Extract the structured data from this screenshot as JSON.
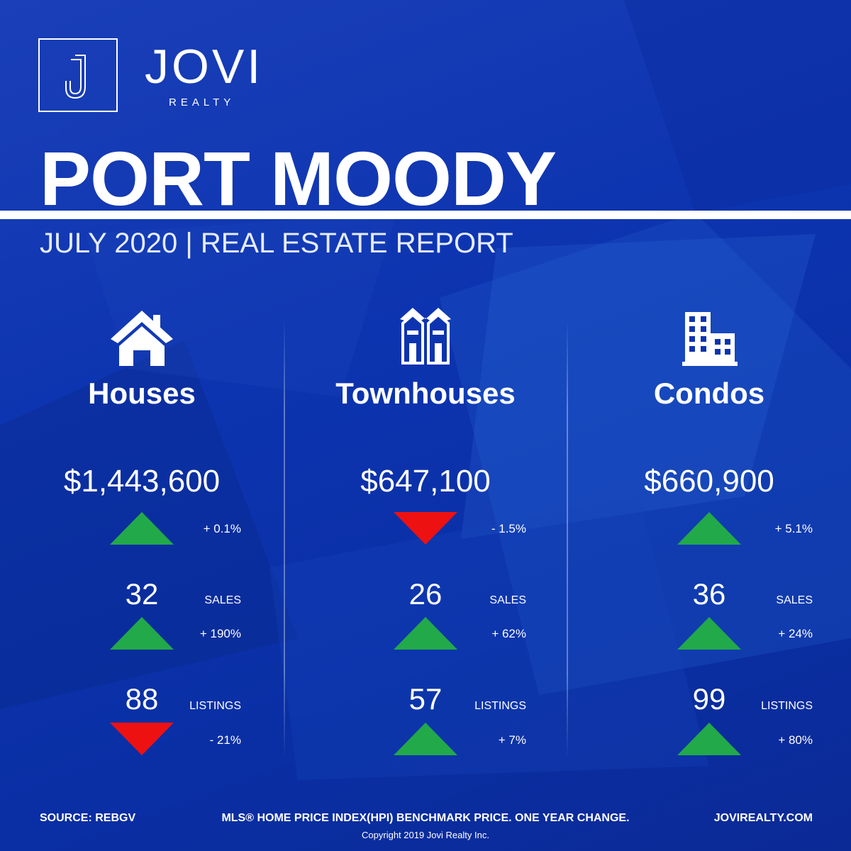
{
  "brand": {
    "name": "JOVI",
    "tagline": "REALTY",
    "monogram": "J"
  },
  "header": {
    "city": "PORT MOODY",
    "subtitle": "JULY 2020 | REAL ESTATE REPORT"
  },
  "colors": {
    "background": "#0d34b0",
    "up": "#22a94a",
    "down": "#ee1111",
    "text": "#ffffff"
  },
  "columns": [
    {
      "icon": "house-icon",
      "title": "Houses",
      "price": "$1,443,600",
      "price_change": {
        "direction": "up",
        "text": "+ 0.1%"
      },
      "sales": {
        "count": "32",
        "label": "SALES",
        "direction": "up",
        "change": "+ 190%"
      },
      "listings": {
        "count": "88",
        "label": "LISTINGS",
        "direction": "down",
        "change": "- 21%"
      }
    },
    {
      "icon": "townhouse-icon",
      "title": "Townhouses",
      "price": "$647,100",
      "price_change": {
        "direction": "down",
        "text": "- 1.5%"
      },
      "sales": {
        "count": "26",
        "label": "SALES",
        "direction": "up",
        "change": "+ 62%"
      },
      "listings": {
        "count": "57",
        "label": "LISTINGS",
        "direction": "up",
        "change": "+ 7%"
      }
    },
    {
      "icon": "condo-building-icon",
      "title": "Condos",
      "price": "$660,900",
      "price_change": {
        "direction": "up",
        "text": "+ 5.1%"
      },
      "sales": {
        "count": "36",
        "label": "SALES",
        "direction": "up",
        "change": "+ 24%"
      },
      "listings": {
        "count": "99",
        "label": "LISTINGS",
        "direction": "up",
        "change": "+ 80%"
      }
    }
  ],
  "footer": {
    "source": "SOURCE:  REBGV",
    "note": "MLS® HOME PRICE INDEX(HPI) BENCHMARK PRICE. ONE YEAR CHANGE.",
    "website": "JOVIREALTY.COM",
    "copyright": "Copyright 2019 Jovi Realty Inc."
  }
}
